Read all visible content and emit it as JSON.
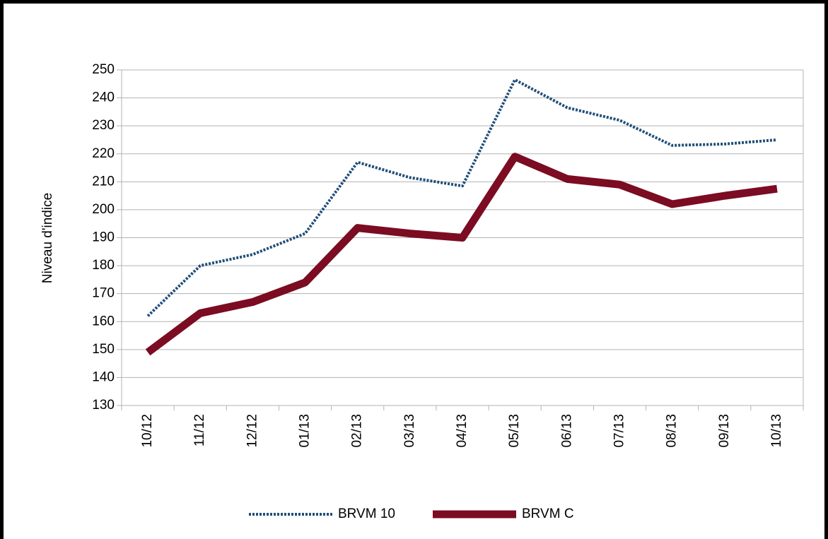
{
  "chart_data": {
    "type": "line",
    "y_label": "Niveau d'indice",
    "categories": [
      "10/12",
      "11/12",
      "12/12",
      "01/13",
      "02/13",
      "03/13",
      "04/13",
      "05/13",
      "06/13",
      "07/13",
      "08/13",
      "09/13",
      "10/13"
    ],
    "series": [
      {
        "name": "BRVM 10",
        "color": "#1f4e79",
        "style": "dotted",
        "values": [
          162,
          180,
          184,
          191.5,
          217,
          211.5,
          208.5,
          246.5,
          236.5,
          232,
          223,
          223.5,
          225
        ]
      },
      {
        "name": "BRVM C",
        "color": "#7b0c22",
        "style": "solid",
        "values": [
          149,
          163,
          167,
          174,
          193.5,
          191.5,
          190,
          219,
          211,
          209,
          202,
          205,
          207.5
        ]
      }
    ],
    "ylim": [
      130,
      250
    ],
    "yticks": [
      130,
      140,
      150,
      160,
      170,
      180,
      190,
      200,
      210,
      220,
      230,
      240,
      250
    ],
    "grid": true,
    "legend": "bottom"
  }
}
